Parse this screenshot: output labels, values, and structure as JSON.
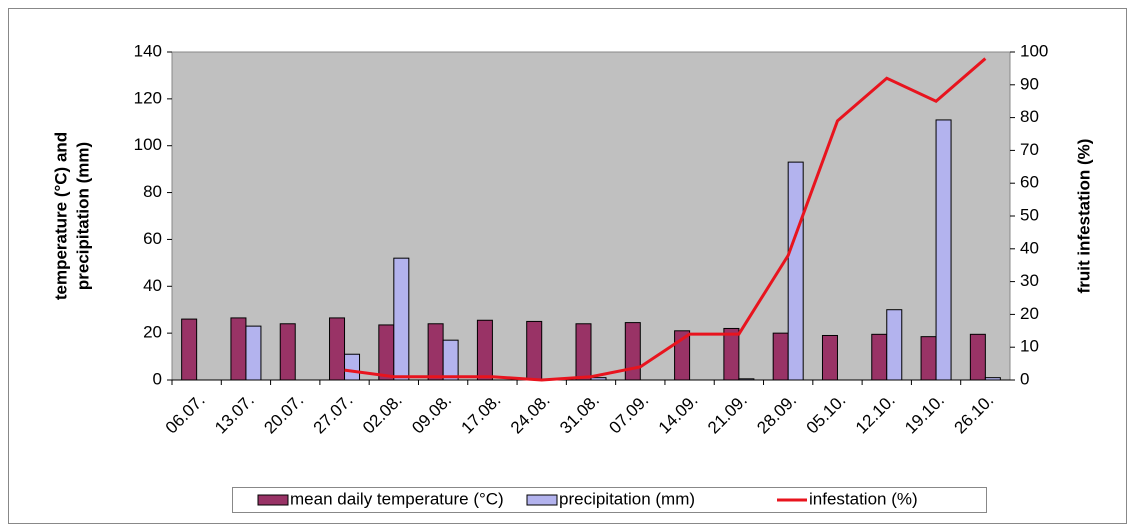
{
  "chart_data": {
    "type": "bar_line",
    "categories": [
      "06.07.",
      "13.07.",
      "20.07.",
      "27.07.",
      "02.08.",
      "09.08.",
      "17.08.",
      "24.08.",
      "31.08.",
      "07.09.",
      "14.09.",
      "21.09.",
      "28.09.",
      "05.10.",
      "12.10.",
      "19.10.",
      "26.10."
    ],
    "series": [
      {
        "name": "mean daily temperature (°C)",
        "type": "bar",
        "color": "#993366",
        "values": [
          26,
          26.5,
          24,
          26.5,
          23.5,
          24,
          25.5,
          25,
          24,
          24.5,
          21,
          22,
          20,
          19,
          19.5,
          18.5,
          19.5
        ]
      },
      {
        "name": "precipitation (mm)",
        "type": "bar",
        "color": "#b3b3ee",
        "values": [
          0,
          23,
          0,
          11,
          52,
          17,
          0,
          0,
          1,
          0,
          0,
          0.5,
          93,
          0,
          30,
          111,
          1
        ]
      },
      {
        "name": "infestation (%)",
        "type": "line",
        "axis": "y2",
        "color": "#e8141e",
        "values": [
          null,
          null,
          null,
          3,
          1,
          1,
          1,
          0,
          1,
          4,
          14,
          14,
          38,
          79,
          92,
          85,
          98
        ]
      }
    ],
    "y_label": [
      "temperature (°C) and",
      "precipitation (mm)"
    ],
    "y2_label": "fruit infestation (%)",
    "ylim": [
      0,
      140
    ],
    "yticks": [
      0,
      20,
      40,
      60,
      80,
      100,
      120,
      140
    ],
    "y2lim": [
      0,
      100
    ],
    "y2ticks": [
      0,
      10,
      20,
      30,
      40,
      50,
      60,
      70,
      80,
      90,
      100
    ],
    "legend": "bottom"
  }
}
